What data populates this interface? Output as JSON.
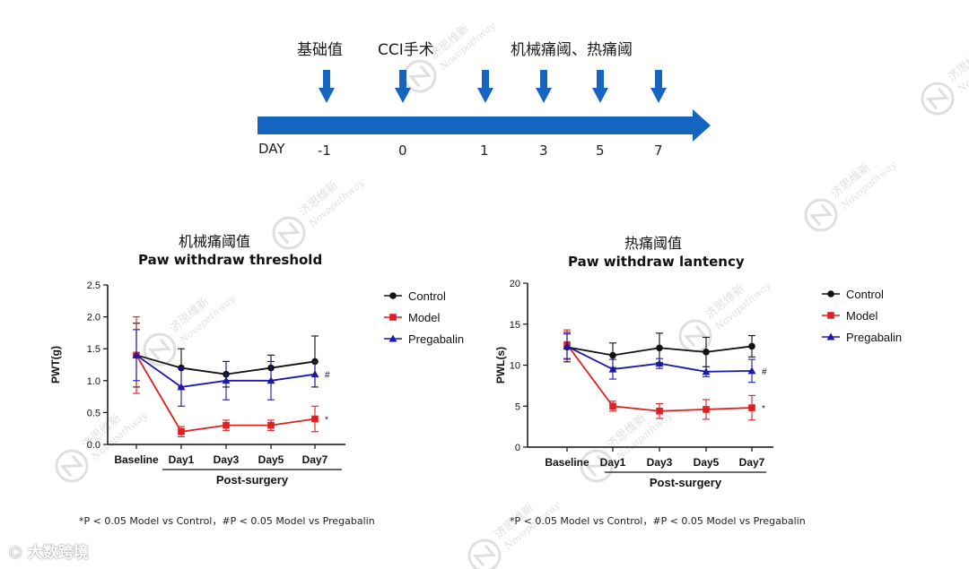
{
  "timeline": {
    "stage_labels": [
      "基础值",
      "CCI手术",
      "机械痛阈、热痛阈"
    ],
    "day_label": "DAY",
    "days": [
      "-1",
      "0",
      "1",
      "3",
      "5",
      "7"
    ],
    "arrow_color": "#1565c0"
  },
  "chart_data": [
    {
      "type": "line",
      "title_cn": "机械痛阈值",
      "title": "Paw withdraw threshold",
      "ylabel": "PWT(g)",
      "xlabel": "Post-surgery",
      "categories": [
        "Baseline",
        "Day1",
        "Day3",
        "Day5",
        "Day7"
      ],
      "ylim": [
        0,
        2.5
      ],
      "yticks": [
        "0.0",
        "0.5",
        "1.0",
        "1.5",
        "2.0",
        "2.5"
      ],
      "ytick_values": [
        0,
        0.5,
        1.0,
        1.5,
        2.0,
        2.5
      ],
      "legend_position": "right",
      "series": [
        {
          "name": "Control",
          "color": "#111111",
          "marker": "circle",
          "values": [
            1.4,
            1.2,
            1.1,
            1.2,
            1.3
          ],
          "errors": [
            0.5,
            0.3,
            0.2,
            0.2,
            0.4
          ]
        },
        {
          "name": "Model",
          "color": "#e02020",
          "marker": "square",
          "values": [
            1.4,
            0.2,
            0.3,
            0.3,
            0.4
          ],
          "errors": [
            0.6,
            0.08,
            0.08,
            0.08,
            0.2
          ]
        },
        {
          "name": "Pregabalin",
          "color": "#1a1aa8",
          "marker": "triangle",
          "values": [
            1.4,
            0.9,
            1.0,
            1.0,
            1.1
          ],
          "errors": [
            0.4,
            0.3,
            0.3,
            0.3,
            0.2
          ]
        }
      ],
      "annotations": [
        {
          "text": "#",
          "series": "Pregabalin",
          "category": "Day7"
        },
        {
          "text": "*",
          "series": "Model",
          "category": "Day7"
        }
      ],
      "footnote": "*P < 0.05 Model vs Control，#P < 0.05 Model vs Pregabalin"
    },
    {
      "type": "line",
      "title_cn": "热痛阈值",
      "title": "Paw withdraw lantency",
      "ylabel": "PWL(s)",
      "xlabel": "Post-surgery",
      "categories": [
        "Baseline",
        "Day1",
        "Day3",
        "Day5",
        "Day7"
      ],
      "ylim": [
        0,
        20
      ],
      "yticks": [
        "0",
        "5",
        "10",
        "15",
        "20"
      ],
      "ytick_values": [
        0,
        5,
        10,
        15,
        20
      ],
      "legend_position": "right",
      "series": [
        {
          "name": "Control",
          "color": "#111111",
          "marker": "circle",
          "values": [
            12.2,
            11.2,
            12.1,
            11.6,
            12.3
          ],
          "errors": [
            1.8,
            1.5,
            1.8,
            1.8,
            1.3
          ]
        },
        {
          "name": "Model",
          "color": "#e02020",
          "marker": "square",
          "values": [
            12.5,
            5.0,
            4.4,
            4.6,
            4.8
          ],
          "errors": [
            1.8,
            0.6,
            0.9,
            1.2,
            1.5
          ]
        },
        {
          "name": "Pregabalin",
          "color": "#1a1aa8",
          "marker": "triangle",
          "values": [
            12.3,
            9.5,
            10.2,
            9.2,
            9.3
          ],
          "errors": [
            1.5,
            1.2,
            0.6,
            0.6,
            1.4
          ]
        }
      ],
      "annotations": [
        {
          "text": "#",
          "series": "Pregabalin",
          "category": "Day7"
        },
        {
          "text": "*",
          "series": "Model",
          "category": "Day7"
        }
      ],
      "footnote": "*P < 0.05 Model vs Control，#P < 0.05 Model vs Pregabalin"
    }
  ],
  "watermark": {
    "cn": "济思维新",
    "en": "Novopathway"
  },
  "brand": "大数跨境"
}
